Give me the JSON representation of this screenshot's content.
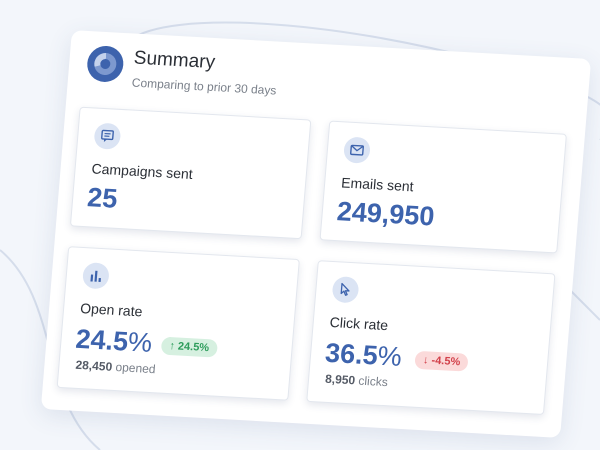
{
  "header": {
    "title": "Summary",
    "subtitle": "Comparing to prior 30 days",
    "icon": "donut-chart-icon"
  },
  "cards": [
    {
      "icon": "chat-message-icon",
      "label": "Campaigns sent",
      "value": "25"
    },
    {
      "icon": "mail-icon",
      "label": "Emails sent",
      "value": "249,950"
    },
    {
      "icon": "bar-chart-icon",
      "label": "Open rate",
      "value": "24.5",
      "unit": "%",
      "change": "24.5%",
      "change_direction": "up",
      "footer_count": "28,450",
      "footer_label": "opened"
    },
    {
      "icon": "cursor-icon",
      "label": "Click rate",
      "value": "36.5",
      "unit": "%",
      "change": "-4.5%",
      "change_direction": "down",
      "footer_count": "8,950",
      "footer_label": "clicks"
    }
  ],
  "colors": {
    "accent": "#3d63ad",
    "positive": "#2e9d5c",
    "negative": "#d2404a"
  }
}
